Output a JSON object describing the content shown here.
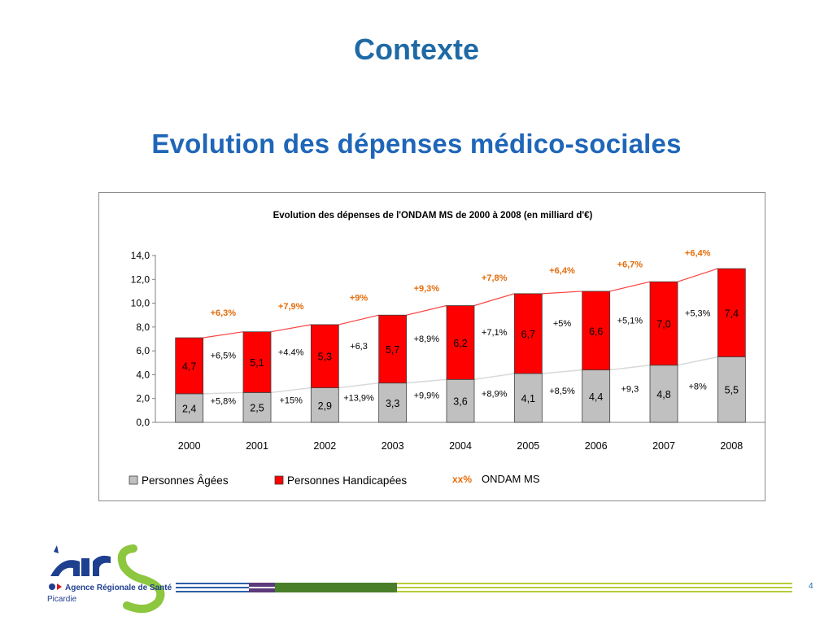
{
  "slide": {
    "title": "Contexte",
    "heading": "Evolution des dépenses médico-sociales",
    "page_number": "4"
  },
  "logo": {
    "org_name": "Agence Régionale de Santé",
    "region": "Picardie"
  },
  "colors": {
    "title_blue": "#1f6aa5",
    "personnes_agees": "#c0c0c0",
    "personnes_handicapees": "#ff0000",
    "ondam_growth_label": "#e46c0a",
    "total_line": "#ff4040",
    "pa_line": "#d9d9d9"
  },
  "chart_data": {
    "type": "bar",
    "stacked": true,
    "title": "Evolution des dépenses de l'ONDAM MS de 2000 à 2008 (en milliard d'€)",
    "categories": [
      "2000",
      "2001",
      "2002",
      "2003",
      "2004",
      "2005",
      "2006",
      "2007",
      "2008"
    ],
    "ylim": [
      0,
      14
    ],
    "yticks": [
      "0,0",
      "2,0",
      "4,0",
      "6,0",
      "8,0",
      "10,0",
      "12,0",
      "14,0"
    ],
    "grid": false,
    "legend_position": "bottom",
    "series": [
      {
        "name": "Personnes Âgées",
        "values": [
          2.4,
          2.5,
          2.9,
          3.3,
          3.6,
          4.1,
          4.4,
          4.8,
          5.5
        ],
        "labels": [
          "2,4",
          "2,5",
          "2,9",
          "3,3",
          "3,6",
          "4,1",
          "4,4",
          "4,8",
          "5,5"
        ],
        "growth_labels": [
          "+5,8%",
          "+15%",
          "+13,9%",
          "+9,9%",
          "+8,9%",
          "+8,5%",
          "+9,3",
          "+8%"
        ]
      },
      {
        "name": "Personnes Handicapées",
        "values": [
          4.7,
          5.1,
          5.3,
          5.7,
          6.2,
          6.7,
          6.6,
          7.0,
          7.4
        ],
        "labels": [
          "4,7",
          "5,1",
          "5,3",
          "5,7",
          "6,2",
          "6,7",
          "6,6",
          "7,0",
          "7,4"
        ],
        "growth_labels": [
          "+6,5%",
          "+4.4%",
          "+6,3",
          "+8,9%",
          "+7,1%",
          "+5%",
          "+5,1%",
          "+5,3%"
        ]
      }
    ],
    "ondam_growth": {
      "legend_marker": "xx%",
      "legend_label": "ONDAM MS",
      "labels": [
        "+6,3%",
        "+7,9%",
        "+9%",
        "+9,3%",
        "+7,8%",
        "+6,4%",
        "+6,7%",
        "+6,4%"
      ]
    }
  }
}
